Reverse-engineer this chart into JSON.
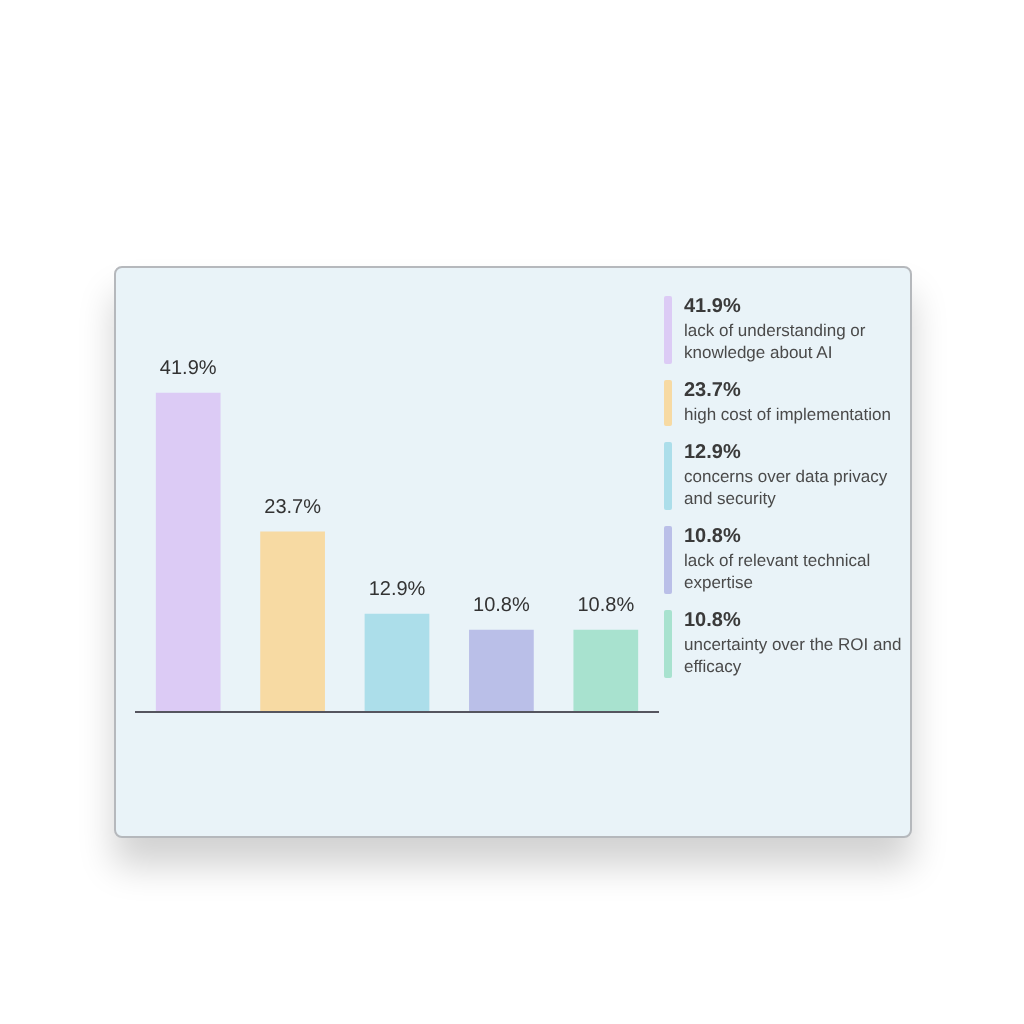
{
  "chart_data": {
    "type": "bar",
    "categories": [
      null,
      null,
      null,
      null,
      null
    ],
    "stacked": true,
    "series": [
      {
        "name": "lack of understanding or knowledge about AI",
        "color": "#dccbf5",
        "values": [
          41.9,
          null,
          null,
          null,
          null
        ],
        "value_labels": [
          "41.9%",
          null,
          null,
          null,
          null
        ]
      },
      {
        "name": "high cost of implementation",
        "color": "#f7daa3",
        "values": [
          null,
          23.7,
          null,
          null,
          null
        ],
        "value_labels": [
          null,
          "23.7%",
          null,
          null,
          null
        ]
      },
      {
        "name": "concerns over data privacy and security",
        "color": "#acdeea",
        "values": [
          null,
          null,
          12.9,
          null,
          null
        ],
        "value_labels": [
          null,
          null,
          "12.9%",
          null,
          null
        ]
      },
      {
        "name": "lack of relevant technical expertise",
        "color": "#babfe8",
        "values": [
          null,
          null,
          null,
          10.8,
          null
        ],
        "value_labels": [
          null,
          null,
          null,
          "10.8%",
          null
        ]
      },
      {
        "name": "uncertainty over the ROI and efficacy",
        "color": "#a8e2cf",
        "values": [
          null,
          null,
          null,
          null,
          10.8
        ],
        "value_labels": [
          null,
          null,
          null,
          null,
          "10.8%"
        ]
      }
    ],
    "legend": "right",
    "tick_labels": false
  }
}
